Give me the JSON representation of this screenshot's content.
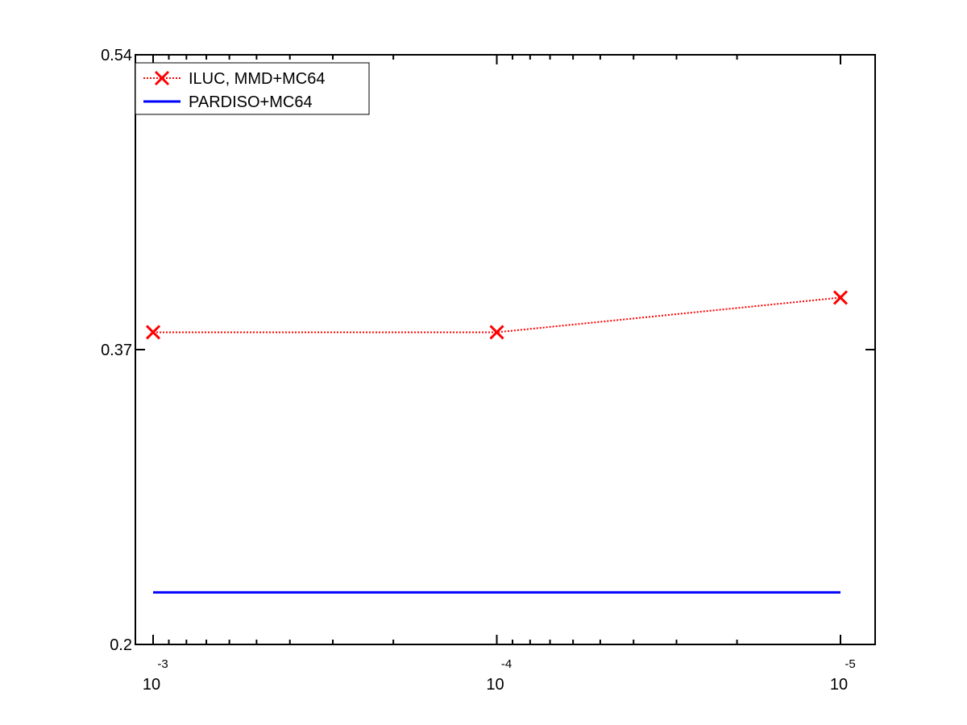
{
  "chart_data": {
    "type": "line",
    "x_scale": "log",
    "x_reversed": true,
    "x_ticks": [
      {
        "value": 0.001,
        "base": "10",
        "exponent": "-3"
      },
      {
        "value": 0.0001,
        "base": "10",
        "exponent": "-4"
      },
      {
        "value": 1e-05,
        "base": "10",
        "exponent": "-5"
      }
    ],
    "y_ticks": [
      {
        "value": 0.2,
        "label": "0.2"
      },
      {
        "value": 0.37,
        "label": "0.37"
      },
      {
        "value": 0.54,
        "label": "0.54"
      }
    ],
    "ylim": [
      0.2,
      0.54
    ],
    "grid": false,
    "legend_position": "top-left",
    "series": [
      {
        "name": "ILUC, MMD+MC64",
        "color": "#ff0000",
        "line_style": "dotted",
        "marker": "x",
        "x": [
          0.001,
          0.0001,
          1e-05
        ],
        "y": [
          0.38,
          0.38,
          0.4
        ]
      },
      {
        "name": "PARDISO+MC64",
        "color": "#0000ff",
        "line_style": "solid",
        "marker": "none",
        "x": [
          0.001,
          0.0001,
          1e-05
        ],
        "y": [
          0.23,
          0.23,
          0.23
        ]
      }
    ]
  }
}
